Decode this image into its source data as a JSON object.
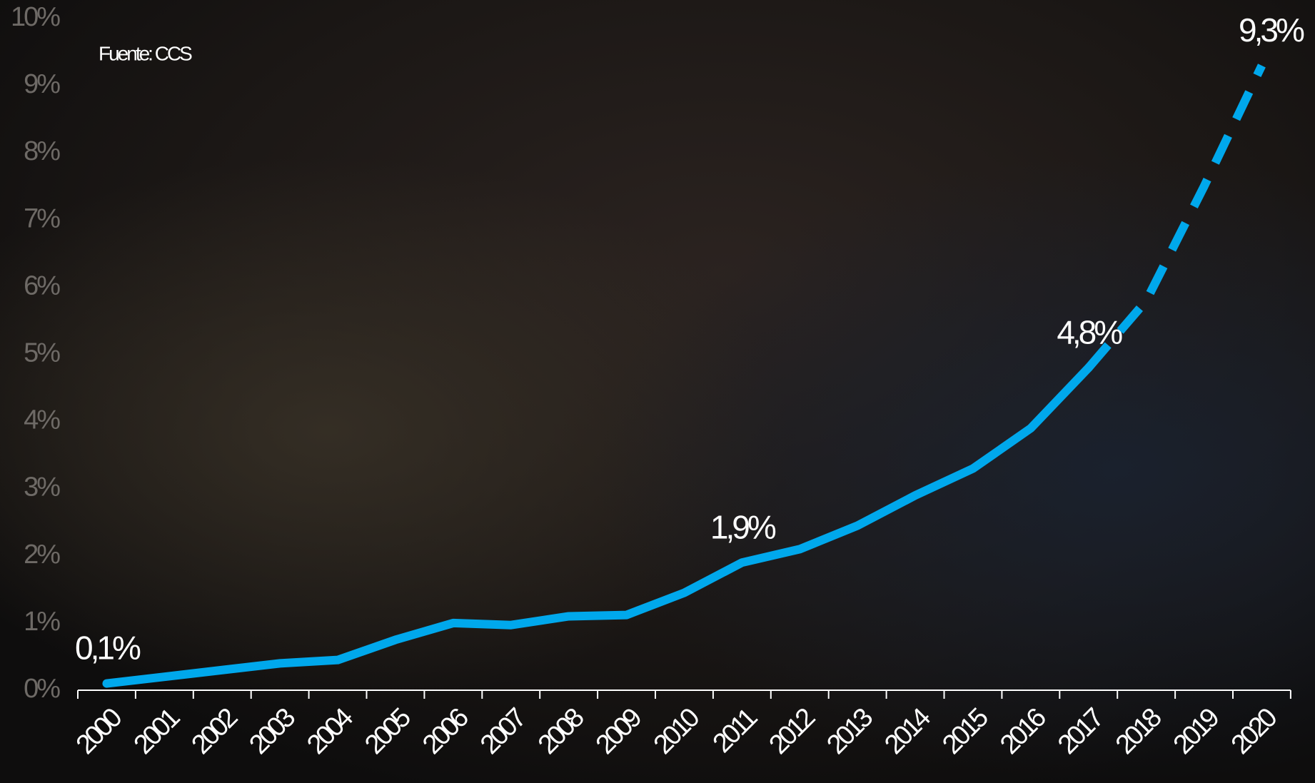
{
  "chart_data": {
    "type": "line",
    "source": "Fuente: CCS",
    "categories": [
      "2000",
      "2001",
      "2002",
      "2003",
      "2004",
      "2005",
      "2006",
      "2007",
      "2008",
      "2009",
      "2010",
      "2011",
      "2012",
      "2013",
      "2014",
      "2015",
      "2016",
      "2017",
      "2018",
      "2019",
      "2020"
    ],
    "series": [
      {
        "color": "#00a8ec",
        "line_style": "solid",
        "values": [
          0.1,
          0.2,
          0.3,
          0.4,
          0.45,
          0.75,
          1.0,
          0.97,
          1.1,
          1.12,
          1.45,
          1.9,
          2.1,
          2.45,
          2.9,
          3.3,
          3.9,
          4.8,
          null,
          null,
          null
        ],
        "value_labels": [
          "0,1%",
          null,
          null,
          null,
          null,
          null,
          null,
          null,
          null,
          null,
          null,
          "1,9%",
          null,
          null,
          null,
          null,
          null,
          "4,8%",
          null,
          null,
          null
        ]
      },
      {
        "color": "#00a8ec",
        "line_style": "dashed",
        "values": [
          null,
          null,
          null,
          null,
          null,
          null,
          null,
          null,
          null,
          null,
          null,
          null,
          null,
          null,
          null,
          null,
          null,
          4.8,
          5.8,
          7.5,
          9.3
        ],
        "value_labels": [
          null,
          null,
          null,
          null,
          null,
          null,
          null,
          null,
          null,
          null,
          null,
          null,
          null,
          null,
          null,
          null,
          null,
          null,
          null,
          null,
          "9,3%"
        ]
      }
    ],
    "ylim": [
      0,
      10
    ],
    "yticks": [
      {
        "value": 0,
        "label": "0%"
      },
      {
        "value": 1,
        "label": "1%"
      },
      {
        "value": 2,
        "label": "2%"
      },
      {
        "value": 3,
        "label": "3%"
      },
      {
        "value": 4,
        "label": "4%"
      },
      {
        "value": 5,
        "label": "5%"
      },
      {
        "value": 6,
        "label": "6%"
      },
      {
        "value": 7,
        "label": "7%"
      },
      {
        "value": 8,
        "label": "8%"
      },
      {
        "value": 9,
        "label": "9%"
      },
      {
        "value": 10,
        "label": "10%"
      }
    ],
    "grid": false
  }
}
